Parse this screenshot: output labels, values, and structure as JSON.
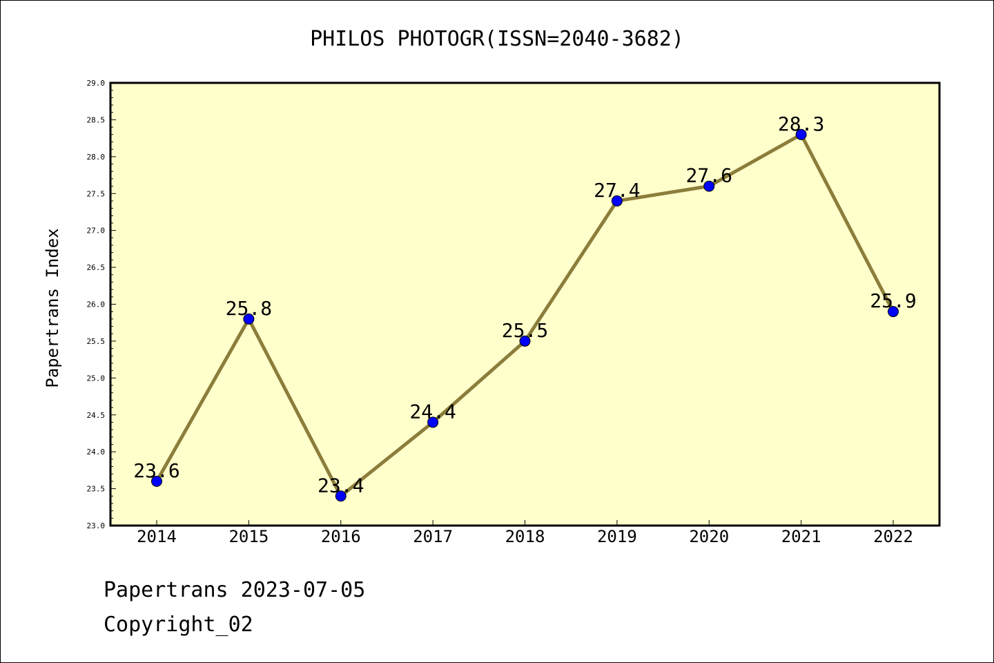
{
  "chart_data": {
    "type": "line",
    "title": "PHILOS PHOTOGR(ISSN=2040-3682)",
    "xlabel": "",
    "ylabel": "Papertrans Index",
    "categories": [
      "2014",
      "2015",
      "2016",
      "2017",
      "2018",
      "2019",
      "2020",
      "2021",
      "2022"
    ],
    "values": [
      23.6,
      25.8,
      23.4,
      24.4,
      25.5,
      27.4,
      27.6,
      28.3,
      25.9
    ],
    "data_labels": [
      "23.6",
      "25.8",
      "23.4",
      "24.4",
      "25.5",
      "27.4",
      "27.6",
      "28.3",
      "25.9"
    ],
    "ylim": [
      23.0,
      29.0
    ],
    "yticks": [
      "23.0",
      "23.5",
      "24.0",
      "24.5",
      "25.0",
      "25.5",
      "26.0",
      "26.5",
      "27.0",
      "27.5",
      "28.0",
      "28.5",
      "29.0"
    ],
    "grid": false,
    "legend": "none",
    "colors": {
      "plot_background": "#ffffcc",
      "line": "#8b7d3a",
      "marker": "#0000ff"
    }
  },
  "footer": {
    "line1": "Papertrans 2023-07-05",
    "line2": "Copyright_02"
  }
}
